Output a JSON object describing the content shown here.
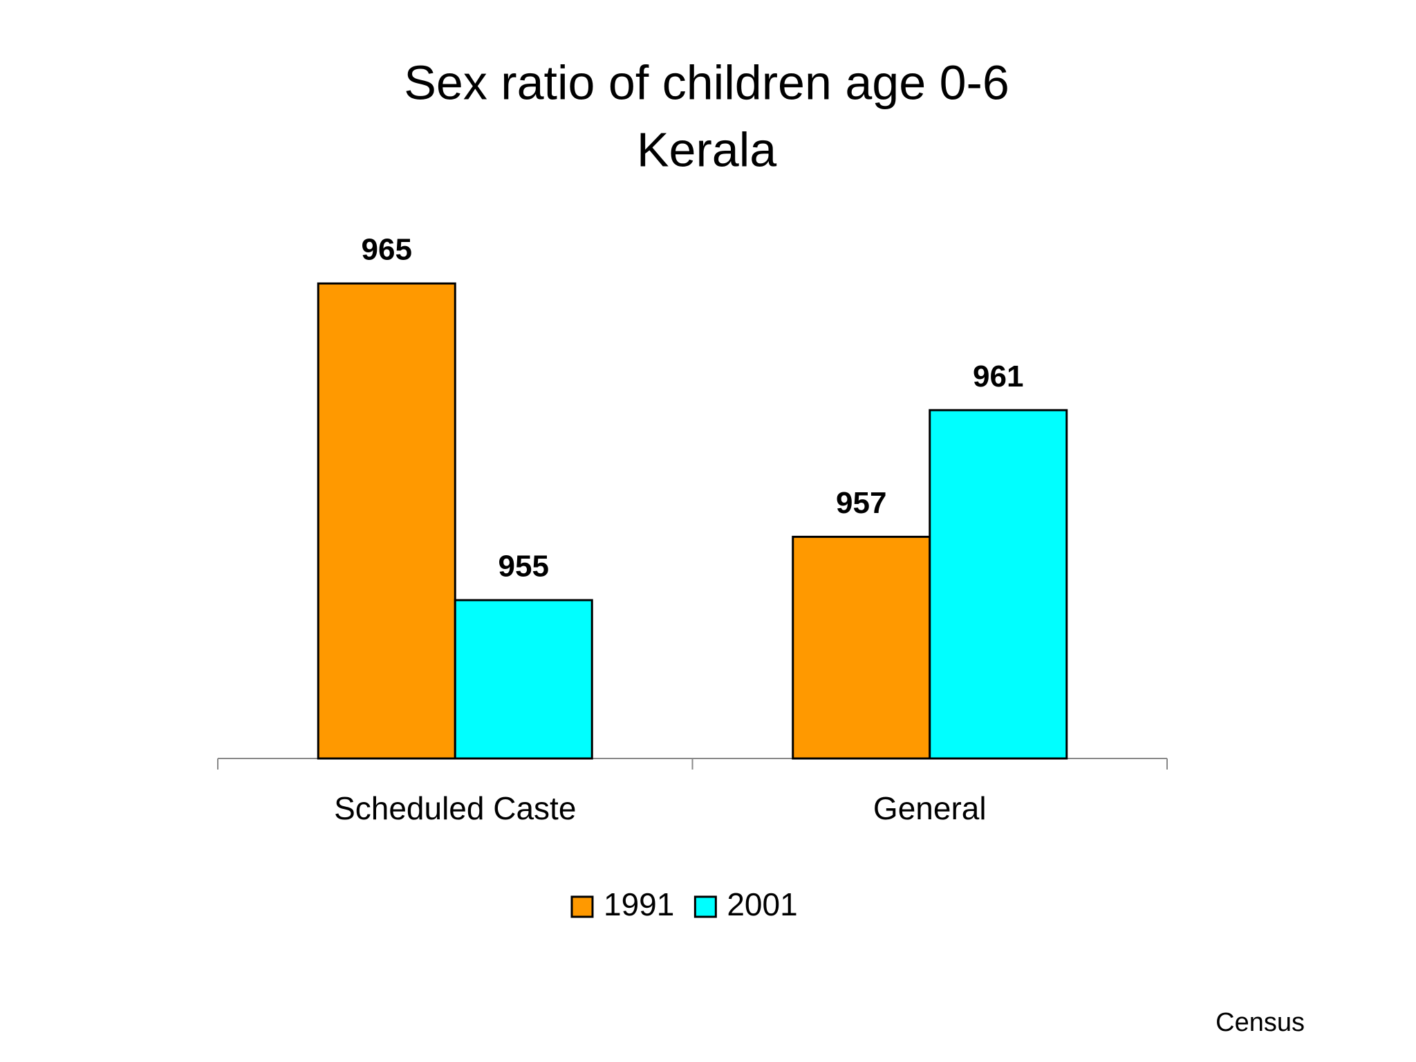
{
  "chart_data": {
    "type": "bar",
    "title": "Sex ratio of children age 0-6",
    "subtitle": "Kerala",
    "categories": [
      "Scheduled Caste",
      "General"
    ],
    "series": [
      {
        "name": "1991",
        "color": "#ff9900",
        "values": [
          965,
          957
        ]
      },
      {
        "name": "2001",
        "color": "#00ffff",
        "values": [
          955,
          961
        ]
      }
    ],
    "ylim": [
      950,
      970
    ],
    "legend": "bottom",
    "source": "Census"
  }
}
